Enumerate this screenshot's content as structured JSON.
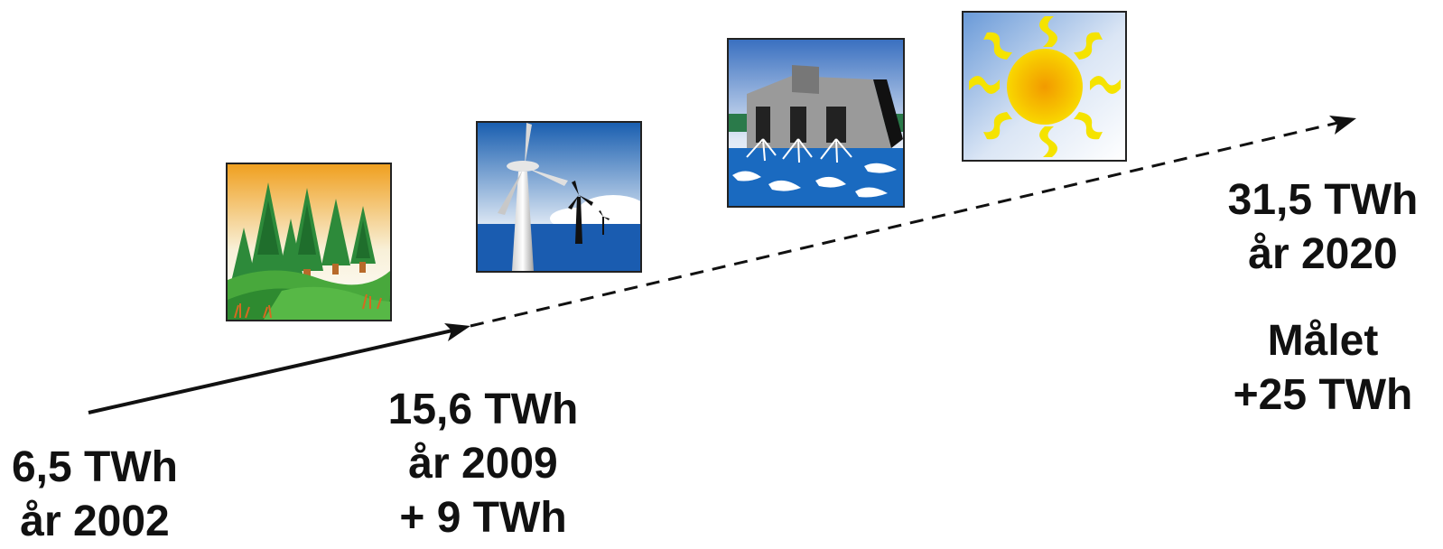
{
  "start": {
    "value": "6,5 TWh",
    "year": "år 2002"
  },
  "mid": {
    "value": "15,6 TWh",
    "year": "år 2009",
    "delta": "+ 9 TWh"
  },
  "end": {
    "value": "31,5 TWh",
    "year": "år 2020"
  },
  "goal": {
    "title": "Målet",
    "delta": "+25 TWh"
  },
  "pictures": [
    {
      "icon": "forest-icon"
    },
    {
      "icon": "wind-turbine-icon"
    },
    {
      "icon": "hydropower-dam-icon"
    },
    {
      "icon": "sun-icon"
    }
  ]
}
